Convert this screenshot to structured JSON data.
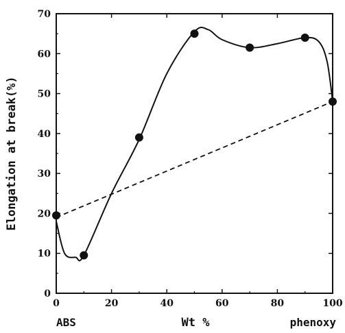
{
  "chart_data": {
    "type": "scatter",
    "title": "",
    "xlabel": "Wt %",
    "ylabel": "Elongation at break(%)",
    "xlim": [
      0,
      100
    ],
    "ylim": [
      0,
      70
    ],
    "x_ticks": [
      0,
      20,
      40,
      60,
      80,
      100
    ],
    "y_ticks": [
      0,
      10,
      20,
      30,
      40,
      50,
      60,
      70
    ],
    "x_tick_labels": [
      "0",
      "20",
      "40",
      "60",
      "80",
      "100"
    ],
    "y_tick_labels": [
      "0",
      "10",
      "20",
      "30",
      "40",
      "50",
      "60",
      "70"
    ],
    "x_end_labels": {
      "left": "ABS",
      "right": "phenoxy"
    },
    "grid": false,
    "series": [
      {
        "style": "solid-curve-with-markers",
        "x": [
          0,
          10,
          30,
          50,
          70,
          90,
          100
        ],
        "y": [
          19.5,
          9.5,
          39,
          65,
          61.5,
          64,
          48
        ]
      },
      {
        "style": "dashed-line",
        "x": [
          0,
          100
        ],
        "y": [
          19,
          48
        ]
      }
    ],
    "curve_control_points": [
      [
        0,
        18
      ],
      [
        3,
        10
      ],
      [
        7,
        9
      ],
      [
        10,
        9.5
      ],
      [
        20,
        25
      ],
      [
        30,
        38.5
      ],
      [
        40,
        55
      ],
      [
        50,
        65.5
      ],
      [
        55,
        66
      ],
      [
        60,
        63.5
      ],
      [
        70,
        61.5
      ],
      [
        80,
        62.5
      ],
      [
        90,
        64
      ],
      [
        95,
        63
      ],
      [
        98,
        58
      ],
      [
        100,
        48
      ]
    ]
  }
}
